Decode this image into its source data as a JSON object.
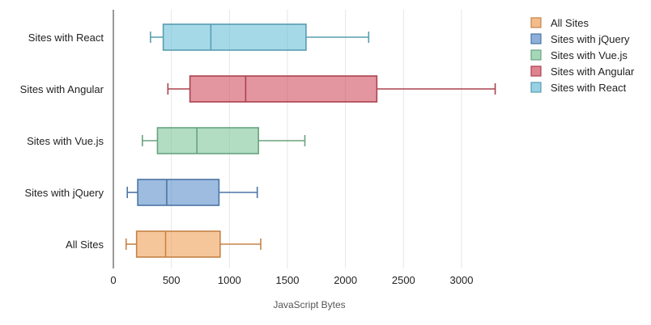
{
  "chart_data": {
    "type": "boxplot",
    "orientation": "horizontal",
    "xlabel": "JavaScript Bytes",
    "xlim": [
      0,
      3300
    ],
    "xticks": [
      0,
      500,
      1000,
      1500,
      2000,
      2500,
      3000
    ],
    "grid": "vertical",
    "legend_position": "top-right",
    "series": [
      {
        "name": "All Sites",
        "color": "#f0a058",
        "min": 110,
        "q1": 200,
        "median": 450,
        "q3": 920,
        "max": 1270
      },
      {
        "name": "Sites with jQuery",
        "color": "#5b8fc9",
        "min": 120,
        "q1": 210,
        "median": 460,
        "q3": 910,
        "max": 1240
      },
      {
        "name": "Sites with Vue.js",
        "color": "#7fc79a",
        "min": 250,
        "q1": 380,
        "median": 720,
        "q3": 1250,
        "max": 1650
      },
      {
        "name": "Sites with Angular",
        "color": "#d0505f",
        "min": 470,
        "q1": 660,
        "median": 1140,
        "q3": 2270,
        "max": 3290
      },
      {
        "name": "Sites with React",
        "color": "#6bbfd8",
        "min": 320,
        "q1": 430,
        "median": 840,
        "q3": 1660,
        "max": 2200
      }
    ]
  }
}
